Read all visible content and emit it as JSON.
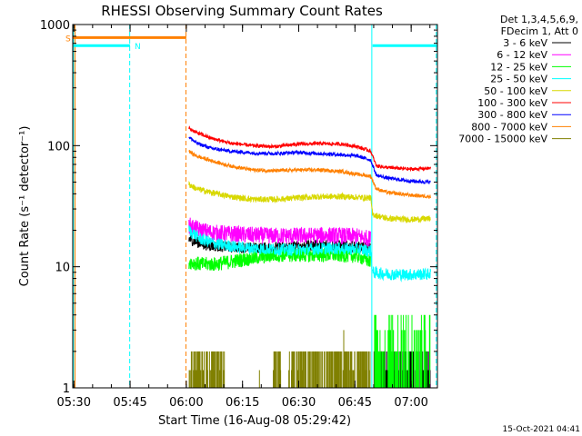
{
  "chart_data": {
    "type": "line",
    "title": "RHESSI Observing Summary Count Rates",
    "xlabel": "Start Time (16-Aug-08 05:29:42)",
    "ylabel": "Count Rate (s⁻¹ detector⁻¹)",
    "yscale": "log",
    "ylim": [
      1,
      1000
    ],
    "xlim_minutes": [
      0,
      97.3
    ],
    "x_ticks": [
      {
        "label": "05:30",
        "minute": 0.3
      },
      {
        "label": "05:45",
        "minute": 15.3
      },
      {
        "label": "06:00",
        "minute": 30.3
      },
      {
        "label": "06:15",
        "minute": 45.3
      },
      {
        "label": "06:30",
        "minute": 60.3
      },
      {
        "label": "06:45",
        "minute": 75.3
      },
      {
        "label": "07:00",
        "minute": 90.3
      }
    ],
    "y_ticks": [
      {
        "label": "1",
        "value": 1
      },
      {
        "label": "10",
        "value": 10
      },
      {
        "label": "100",
        "value": 100
      },
      {
        "label": "1000",
        "value": 1000
      }
    ],
    "legend_header": [
      "Det 1,3,4,5,6,9,",
      "FDecim 1, Att 0"
    ],
    "legend_position": "right",
    "timestamp": "15-Oct-2021 04:41",
    "data_start_minute": 31.0,
    "data_end_minute": 95.5,
    "series": [
      {
        "name": "3 - 6 keV",
        "color": "#000000",
        "noise": 0.045,
        "points": [
          [
            31.0,
            17
          ],
          [
            33,
            16
          ],
          [
            36,
            15
          ],
          [
            42,
            14.5
          ],
          [
            50,
            14.3
          ],
          [
            58,
            14.6
          ],
          [
            66,
            15.2
          ],
          [
            74,
            14.8
          ],
          [
            79.5,
            14.2
          ]
        ]
      },
      {
        "name": "6 - 12 keV",
        "color": "#ff00ff",
        "noise": 0.07,
        "points": [
          [
            31.0,
            22
          ],
          [
            34,
            20
          ],
          [
            38,
            19
          ],
          [
            44,
            18.5
          ],
          [
            52,
            18
          ],
          [
            60,
            18
          ],
          [
            68,
            18.2
          ],
          [
            76,
            17.8
          ],
          [
            79.5,
            17
          ]
        ]
      },
      {
        "name": "12 - 25 keV",
        "color": "#00ff00",
        "noise": 0.06,
        "points": [
          [
            31.0,
            11
          ],
          [
            34,
            10.5
          ],
          [
            38,
            10.5
          ],
          [
            46,
            11.5
          ],
          [
            54,
            12.5
          ],
          [
            62,
            12.5
          ],
          [
            70,
            12.5
          ],
          [
            76,
            12.3
          ],
          [
            79.5,
            11
          ]
        ]
      },
      {
        "name": "25 - 50 keV",
        "color": "#00ffff",
        "noise": 0.05,
        "points": [
          [
            31.0,
            20
          ],
          [
            34,
            17
          ],
          [
            38,
            15.5
          ],
          [
            44,
            14.5
          ],
          [
            52,
            14
          ],
          [
            60,
            13.8
          ],
          [
            68,
            14.2
          ],
          [
            76,
            14
          ],
          [
            79.5,
            13.5
          ],
          [
            80,
            9
          ],
          [
            82,
            8.8
          ],
          [
            88,
            8.6
          ],
          [
            95.5,
            8.7
          ]
        ]
      },
      {
        "name": "50 - 100 keV",
        "color": "#d8d800",
        "noise": 0.025,
        "points": [
          [
            31.0,
            48
          ],
          [
            33,
            44
          ],
          [
            37,
            41
          ],
          [
            42,
            38
          ],
          [
            48,
            36
          ],
          [
            54,
            36
          ],
          [
            60,
            37
          ],
          [
            66,
            38
          ],
          [
            72,
            38
          ],
          [
            79.5,
            37
          ],
          [
            80,
            27
          ],
          [
            84,
            25
          ],
          [
            90,
            24.5
          ],
          [
            95.5,
            25
          ]
        ]
      },
      {
        "name": "100 - 300 keV",
        "color": "#ff0000",
        "noise": 0.015,
        "points": [
          [
            31.0,
            140
          ],
          [
            33,
            128
          ],
          [
            37,
            115
          ],
          [
            42,
            105
          ],
          [
            48,
            100
          ],
          [
            54,
            98
          ],
          [
            60,
            103
          ],
          [
            66,
            104
          ],
          [
            72,
            103
          ],
          [
            76,
            98
          ],
          [
            79.5,
            90
          ],
          [
            81,
            68
          ],
          [
            84,
            66
          ],
          [
            90,
            64
          ],
          [
            95.5,
            65
          ]
        ]
      },
      {
        "name": "300 - 800 keV",
        "color": "#0000ff",
        "noise": 0.015,
        "points": [
          [
            31.0,
            118
          ],
          [
            33,
            105
          ],
          [
            37,
            95
          ],
          [
            42,
            90
          ],
          [
            48,
            87
          ],
          [
            54,
            86
          ],
          [
            60,
            88
          ],
          [
            66,
            86
          ],
          [
            72,
            84
          ],
          [
            76,
            82
          ],
          [
            79.5,
            76
          ],
          [
            81,
            57
          ],
          [
            84,
            54
          ],
          [
            90,
            51
          ],
          [
            95.5,
            50
          ]
        ]
      },
      {
        "name": "800 - 7000 keV",
        "color": "#ff8000",
        "noise": 0.015,
        "points": [
          [
            31.0,
            90
          ],
          [
            33,
            82
          ],
          [
            37,
            75
          ],
          [
            42,
            68
          ],
          [
            48,
            63
          ],
          [
            54,
            62
          ],
          [
            60,
            63
          ],
          [
            66,
            63
          ],
          [
            72,
            61
          ],
          [
            76,
            58
          ],
          [
            79.5,
            56
          ],
          [
            81,
            44
          ],
          [
            84,
            41
          ],
          [
            90,
            39
          ],
          [
            95.5,
            38
          ]
        ]
      },
      {
        "name": "7000 - 15000 keV",
        "color": "#808000",
        "noise": 0.0,
        "points": []
      }
    ],
    "attenuator_bars": [
      {
        "label": "S",
        "color": "#ff8000",
        "start_minute": 0.0,
        "end_minute": 30.3,
        "level": 780
      },
      {
        "label": "N",
        "color": "#00ffff",
        "start_minute": 0.0,
        "end_minute": 15.3,
        "level": 670
      },
      {
        "label": "",
        "color": "#00ffff",
        "start_minute": 80.0,
        "end_minute": 97.3,
        "level": 670
      }
    ],
    "vertical_markers": [
      {
        "minute": 0.2,
        "color": "#00ffff",
        "style": "solid"
      },
      {
        "minute": 0.6,
        "color": "#ff8000",
        "style": "solid"
      },
      {
        "minute": 15.2,
        "color": "#00ffff",
        "style": "dashed"
      },
      {
        "minute": 30.2,
        "color": "#ff8000",
        "style": "dashed"
      },
      {
        "minute": 79.8,
        "color": "#00ffff",
        "style": "solid"
      },
      {
        "minute": 97.0,
        "color": "#00ffff",
        "style": "dashed"
      }
    ]
  }
}
